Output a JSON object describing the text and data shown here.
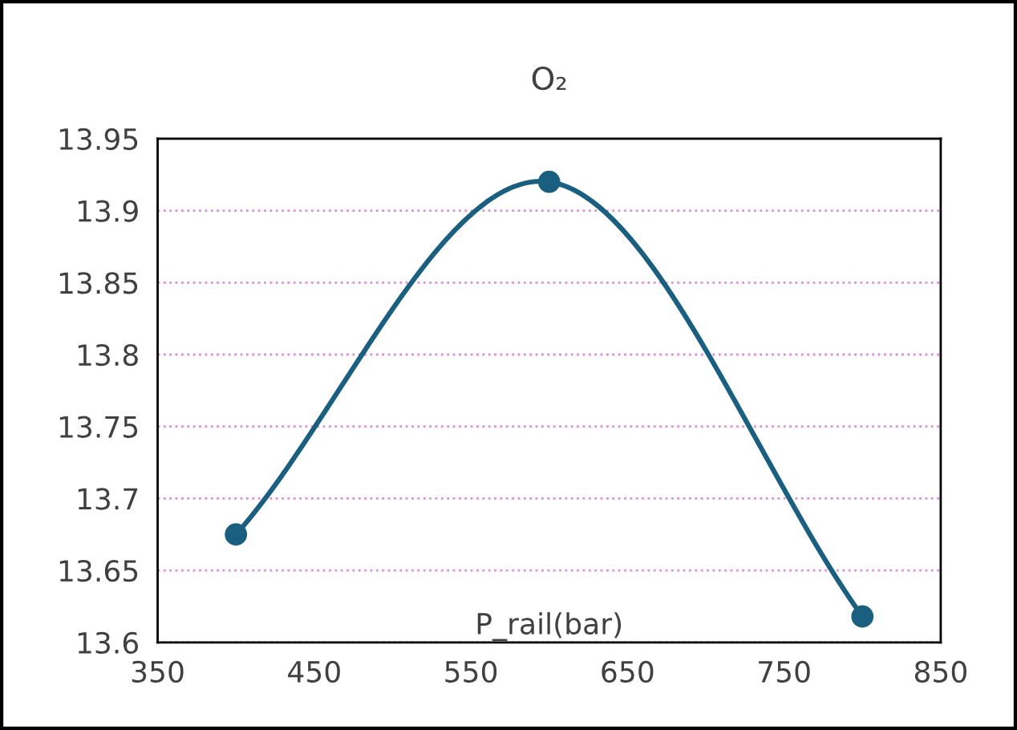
{
  "chart_data": {
    "type": "line",
    "title": "O₂",
    "xlabel": "P_rail(bar)",
    "x": [
      400,
      600,
      800
    ],
    "series": [
      {
        "color": "#1a5f7f",
        "values": [
          13.675,
          13.92,
          13.618
        ]
      }
    ],
    "xlim": [
      350,
      850
    ],
    "xticks": [
      350,
      450,
      550,
      650,
      750,
      850
    ],
    "ylim": [
      13.6,
      13.95
    ],
    "yticks": [
      13.6,
      13.65,
      13.7,
      13.75,
      13.8,
      13.85,
      13.9,
      13.95
    ],
    "grid": "y",
    "marker": "circle",
    "line_style": "solid"
  }
}
